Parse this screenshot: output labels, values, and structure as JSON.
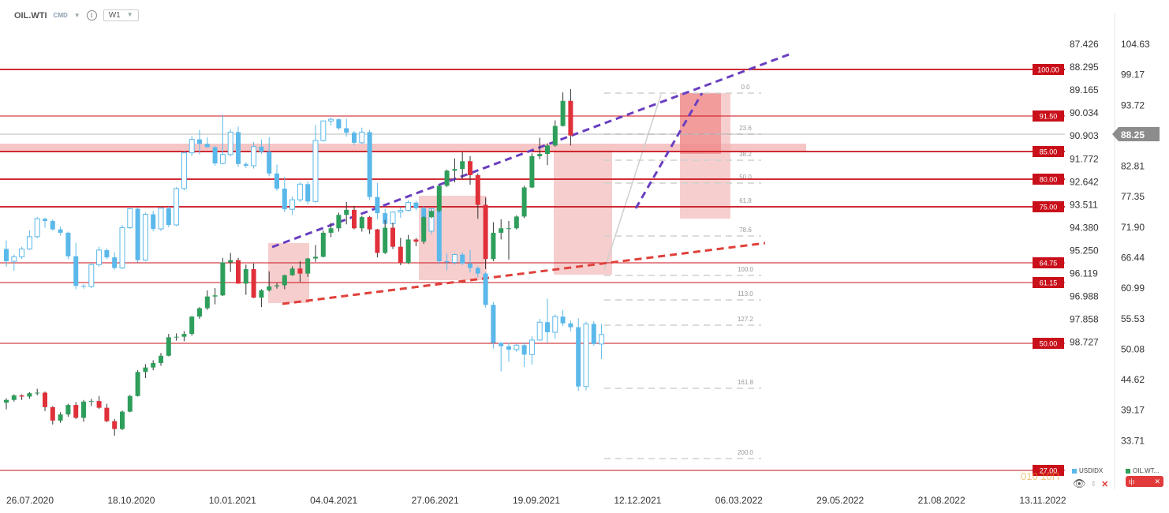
{
  "header": {
    "symbol": "OIL.WTI",
    "type": "CMD",
    "timeframe": "W1"
  },
  "colors": {
    "up": "#2e9e5b",
    "down": "#e0303a",
    "usd": "#5bb8ea",
    "level": "#c9101a",
    "purple": "#6a3fc0",
    "zone": "#f3b3b3"
  },
  "legend": {
    "series1": "USDIDX",
    "series2": "OIL.WT..."
  },
  "watermark": "010 10П",
  "chart_data": {
    "type": "candlestick",
    "x_ticks": [
      "26.07.2020",
      "18.10.2020",
      "10.01.2021",
      "04.04.2021",
      "27.06.2021",
      "19.09.2021",
      "12.12.2021",
      "06.03.2022",
      "29.05.2022",
      "21.08.2022",
      "13.11.2022"
    ],
    "y_ticks_inner": [
      "87.426",
      "88.295",
      "89.165",
      "90.034",
      "90.903",
      "91.772",
      "92.642",
      "93.511",
      "94.380",
      "95.250",
      "96.119",
      "96.988",
      "97.858",
      "98.727"
    ],
    "y_ticks_outer": [
      "104.63",
      "99.17",
      "93.72",
      "88.25",
      "82.81",
      "77.35",
      "71.90",
      "66.44",
      "60.99",
      "55.53",
      "50.08",
      "44.62",
      "39.17",
      "33.71"
    ],
    "current_price": "88.25",
    "levels": [
      {
        "label": "100.00",
        "value": 100.0
      },
      {
        "label": "91.50",
        "value": 91.5
      },
      {
        "label": "85.00",
        "value": 85.0
      },
      {
        "label": "80.00",
        "value": 80.0
      },
      {
        "label": "75.00",
        "value": 75.0
      },
      {
        "label": "64.75",
        "value": 64.75
      },
      {
        "label": "61.15",
        "value": 61.15
      },
      {
        "label": "50.00",
        "value": 50.0
      },
      {
        "label": "27.00",
        "value": 27.0
      }
    ],
    "fib_labels": [
      "0.0",
      "23.6",
      "38.2",
      "50.0",
      "61.8",
      "78.6",
      "100.0",
      "113.0",
      "127.2",
      "161.8",
      "200.0"
    ],
    "wti_candles": [
      [
        40.5,
        41.3,
        39.3,
        41.0
      ],
      [
        41.0,
        42.0,
        40.7,
        41.8
      ],
      [
        41.8,
        42.0,
        41.0,
        41.6
      ],
      [
        41.6,
        42.4,
        41.2,
        42.2
      ],
      [
        42.2,
        43.0,
        41.8,
        42.3
      ],
      [
        42.3,
        42.5,
        39.0,
        39.7
      ],
      [
        39.7,
        39.9,
        36.6,
        37.3
      ],
      [
        37.3,
        38.8,
        36.9,
        38.4
      ],
      [
        38.4,
        40.3,
        38.0,
        40.1
      ],
      [
        40.1,
        40.6,
        37.6,
        37.8
      ],
      [
        37.8,
        41.0,
        37.1,
        40.7
      ],
      [
        40.7,
        41.2,
        39.9,
        40.8
      ],
      [
        40.8,
        41.7,
        39.4,
        39.6
      ],
      [
        39.6,
        40.3,
        37.0,
        37.2
      ],
      [
        37.2,
        37.6,
        34.6,
        35.8
      ],
      [
        35.8,
        39.1,
        35.6,
        38.9
      ],
      [
        38.9,
        41.9,
        38.8,
        41.7
      ],
      [
        41.7,
        46.3,
        41.6,
        46.0
      ],
      [
        46.0,
        47.4,
        44.9,
        46.8
      ],
      [
        46.8,
        48.1,
        46.3,
        47.6
      ],
      [
        47.6,
        49.4,
        47.1,
        48.9
      ],
      [
        48.9,
        52.8,
        48.8,
        52.2
      ],
      [
        52.2,
        52.9,
        51.6,
        52.3
      ],
      [
        52.3,
        53.3,
        51.5,
        52.8
      ],
      [
        52.8,
        56.0,
        52.5,
        55.9
      ],
      [
        55.9,
        57.6,
        55.5,
        57.4
      ],
      [
        57.4,
        60.6,
        57.1,
        59.5
      ],
      [
        59.5,
        61.0,
        58.1,
        59.7
      ],
      [
        59.7,
        66.4,
        59.6,
        65.6
      ],
      [
        65.6,
        67.3,
        63.9,
        66.0
      ],
      [
        66.0,
        66.4,
        61.8,
        61.8
      ],
      [
        61.8,
        65.2,
        59.8,
        64.4
      ],
      [
        64.4,
        65.4,
        59.2,
        59.3
      ],
      [
        59.3,
        60.8,
        57.6,
        60.6
      ],
      [
        60.6,
        64.0,
        60.4,
        61.3
      ],
      [
        61.3,
        61.9,
        60.9,
        61.5
      ],
      [
        61.5,
        63.4,
        60.8,
        63.3
      ],
      [
        63.3,
        64.9,
        63.2,
        64.5
      ],
      [
        64.5,
        65.8,
        62.1,
        63.6
      ],
      [
        63.6,
        66.4,
        63.0,
        66.3
      ],
      [
        66.3,
        68.7,
        65.7,
        66.6
      ],
      [
        66.6,
        71.3,
        66.5,
        70.9
      ],
      [
        70.9,
        72.7,
        70.1,
        71.7
      ],
      [
        71.7,
        74.5,
        71.1,
        74.1
      ],
      [
        74.1,
        76.4,
        72.4,
        75.0
      ],
      [
        75.0,
        75.7,
        71.5,
        71.7
      ],
      [
        71.7,
        73.9,
        71.1,
        73.7
      ],
      [
        73.7,
        73.9,
        70.7,
        71.5
      ],
      [
        71.5,
        71.6,
        66.5,
        67.3
      ],
      [
        67.3,
        73.2,
        67.1,
        71.8
      ],
      [
        71.8,
        72.7,
        68.0,
        68.4
      ],
      [
        68.4,
        70.0,
        65.1,
        65.5
      ],
      [
        65.5,
        70.5,
        65.3,
        69.7
      ],
      [
        69.7,
        70.0,
        68.5,
        69.3
      ],
      [
        69.3,
        73.8,
        68.9,
        73.7
      ],
      [
        73.7,
        75.1,
        73.5,
        74.8
      ],
      [
        74.8,
        79.4,
        74.6,
        79.3
      ],
      [
        79.3,
        82.2,
        79.1,
        82.0
      ],
      [
        82.0,
        84.2,
        79.9,
        82.3
      ],
      [
        82.3,
        85.3,
        80.5,
        83.7
      ],
      [
        83.7,
        84.6,
        79.5,
        81.2
      ],
      [
        81.2,
        81.5,
        73.4,
        75.9
      ],
      [
        75.9,
        77.2,
        64.4,
        66.2
      ],
      [
        66.2,
        72.8,
        65.8,
        70.9
      ],
      [
        70.9,
        73.3,
        69.7,
        71.7
      ],
      [
        71.7,
        73.0,
        66.1,
        71.7
      ],
      [
        71.7,
        74.0,
        71.5,
        73.8
      ],
      [
        73.8,
        79.3,
        73.5,
        79.0
      ],
      [
        79.0,
        85.1,
        78.9,
        84.6
      ],
      [
        84.6,
        87.9,
        84.1,
        85.0
      ],
      [
        85.0,
        86.9,
        83.0,
        86.5
      ],
      [
        86.5,
        91.0,
        86.3,
        90.0
      ],
      [
        90.0,
        96.0,
        89.9,
        94.5
      ],
      [
        94.5,
        96.6,
        86.5,
        88.3
      ]
    ],
    "usdidx_candles": [
      [
        68.0,
        69.5,
        64.8,
        65.8
      ],
      [
        65.8,
        67.0,
        64.1,
        66.6
      ],
      [
        66.6,
        68.4,
        66.2,
        68.0
      ],
      [
        68.0,
        71.3,
        67.8,
        70.2
      ],
      [
        70.2,
        73.7,
        69.9,
        73.4
      ],
      [
        73.4,
        73.6,
        71.8,
        73.0
      ],
      [
        73.0,
        73.3,
        71.3,
        71.5
      ],
      [
        71.5,
        72.0,
        70.4,
        70.9
      ],
      [
        70.9,
        71.1,
        66.2,
        66.7
      ],
      [
        66.7,
        69.1,
        60.8,
        61.4
      ],
      [
        61.4,
        61.7,
        60.9,
        61.3
      ],
      [
        61.3,
        65.5,
        61.0,
        65.2
      ],
      [
        65.2,
        68.4,
        64.8,
        67.8
      ],
      [
        67.8,
        68.1,
        66.2,
        66.5
      ],
      [
        66.5,
        67.4,
        64.3,
        64.6
      ],
      [
        64.6,
        72.3,
        64.4,
        71.8
      ],
      [
        71.8,
        75.3,
        71.6,
        75.2
      ],
      [
        75.2,
        75.4,
        65.6,
        66.0
      ],
      [
        66.0,
        74.5,
        65.8,
        74.2
      ],
      [
        74.2,
        74.8,
        71.2,
        71.6
      ],
      [
        71.6,
        75.5,
        71.2,
        75.3
      ],
      [
        75.3,
        75.6,
        71.9,
        72.3
      ],
      [
        72.3,
        79.1,
        72.1,
        78.8
      ],
      [
        78.8,
        85.5,
        78.5,
        85.2
      ],
      [
        85.2,
        88.2,
        84.6,
        87.6
      ],
      [
        87.6,
        89.3,
        84.9,
        86.8
      ],
      [
        86.8,
        88.0,
        86.6,
        86.2
      ],
      [
        86.2,
        86.4,
        82.9,
        83.3
      ],
      [
        83.3,
        92.0,
        83.1,
        84.9
      ],
      [
        84.9,
        89.4,
        84.6,
        88.9
      ],
      [
        88.9,
        89.9,
        82.7,
        83.2
      ],
      [
        83.2,
        83.5,
        82.5,
        82.9
      ],
      [
        82.9,
        87.1,
        82.4,
        86.3
      ],
      [
        86.3,
        87.6,
        85.0,
        85.4
      ],
      [
        85.4,
        88.0,
        81.0,
        81.5
      ],
      [
        81.5,
        83.1,
        78.4,
        78.8
      ],
      [
        78.8,
        80.9,
        74.6,
        75.1
      ],
      [
        75.1,
        77.4,
        74.1,
        76.8
      ],
      [
        76.8,
        80.0,
        76.4,
        79.6
      ],
      [
        79.6,
        80.1,
        76.0,
        76.5
      ],
      [
        76.5,
        90.2,
        76.3,
        87.4
      ],
      [
        87.4,
        91.0,
        87.2,
        90.9
      ],
      [
        90.9,
        91.5,
        90.1,
        91.2
      ],
      [
        91.2,
        91.4,
        89.3,
        89.6
      ],
      [
        89.6,
        91.3,
        88.1,
        88.8
      ],
      [
        88.8,
        89.1,
        86.6,
        87.0
      ],
      [
        87.0,
        89.7,
        86.8,
        88.9
      ],
      [
        88.9,
        89.3,
        76.8,
        77.3
      ],
      [
        77.3,
        79.8,
        73.3,
        74.4
      ],
      [
        74.4,
        75.2,
        71.7,
        72.5
      ],
      [
        72.5,
        74.7,
        70.8,
        74.6
      ],
      [
        74.6,
        75.4,
        73.6,
        74.9
      ],
      [
        74.9,
        76.7,
        74.7,
        76.3
      ],
      [
        76.3,
        76.6,
        74.9,
        75.3
      ],
      [
        75.3,
        75.6,
        71.0,
        71.2
      ],
      [
        71.2,
        75.3,
        70.6,
        75.2
      ],
      [
        75.2,
        75.4,
        65.3,
        65.8
      ],
      [
        65.8,
        67.2,
        64.2,
        65.6
      ],
      [
        65.6,
        67.2,
        65.2,
        67.0
      ],
      [
        67.0,
        67.4,
        65.1,
        65.4
      ],
      [
        65.4,
        67.8,
        63.8,
        64.6
      ],
      [
        64.6,
        64.9,
        62.9,
        63.6
      ],
      [
        63.6,
        63.9,
        57.5,
        58.0
      ],
      [
        58.0,
        58.5,
        50.2,
        51.2
      ],
      [
        51.2,
        51.4,
        46.1,
        50.6
      ],
      [
        50.6,
        51.2,
        47.8,
        50.0
      ],
      [
        50.0,
        51.0,
        49.6,
        50.8
      ],
      [
        50.8,
        51.3,
        46.9,
        49.1
      ],
      [
        49.1,
        52.4,
        47.3,
        51.7
      ],
      [
        51.7,
        55.5,
        51.6,
        54.9
      ],
      [
        54.9,
        59.1,
        51.3,
        53.1
      ],
      [
        53.1,
        56.3,
        51.9,
        55.9
      ],
      [
        55.9,
        57.1,
        54.2,
        54.7
      ],
      [
        54.7,
        55.2,
        53.3,
        54.0
      ],
      [
        54.0,
        55.6,
        42.6,
        43.4
      ],
      [
        43.4,
        55.0,
        42.7,
        54.6
      ],
      [
        54.6,
        55.1,
        50.7,
        51.0
      ],
      [
        51.0,
        54.6,
        48.3,
        52.7
      ]
    ]
  }
}
